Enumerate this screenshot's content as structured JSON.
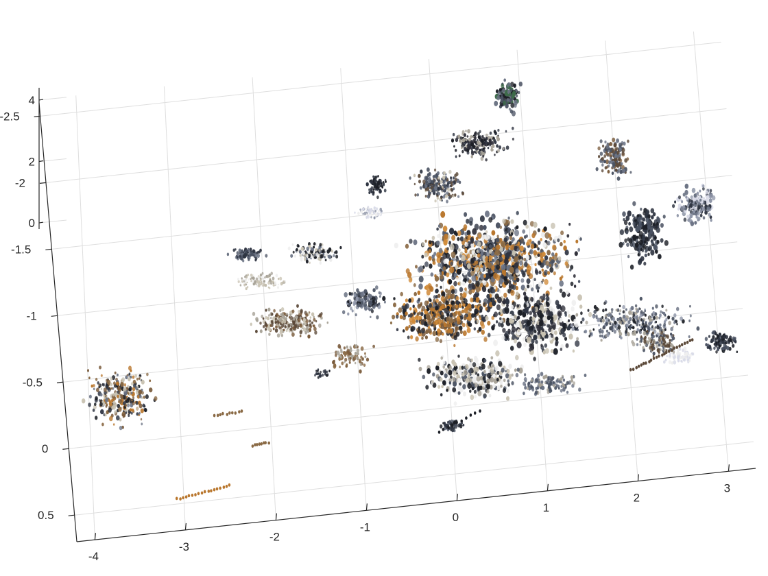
{
  "chart_data": {
    "type": "scatter",
    "subtype": "3d-point-cloud",
    "title": "",
    "xlabel": "",
    "ylabel": "",
    "zlabel": "",
    "grid": true,
    "legend": "none",
    "x_ticks": [
      "-4",
      "-3",
      "-2",
      "-1",
      "0",
      "1",
      "2",
      "3"
    ],
    "y_ticks": [
      "-2.5",
      "-2",
      "-1.5",
      "-1",
      "-0.5",
      "0",
      "0.5"
    ],
    "z_ticks": [
      "0",
      "2",
      "4"
    ],
    "xlim": [
      -4.2,
      3.3
    ],
    "ylim": [
      -2.6,
      0.7
    ],
    "zlim": [
      -0.2,
      4.4
    ],
    "point_colors": [
      "#1c1f26",
      "#2f3542",
      "#4a5262",
      "#6b7384",
      "#8a6a45",
      "#b9772e",
      "#d08a38",
      "#c9c3b3",
      "#eeeeee",
      "#5c4a3a",
      "#3e6b4a",
      "#8f96a8",
      "#30303a",
      "#7a5b3c",
      "#a8a398",
      "#d9dbe8"
    ]
  }
}
